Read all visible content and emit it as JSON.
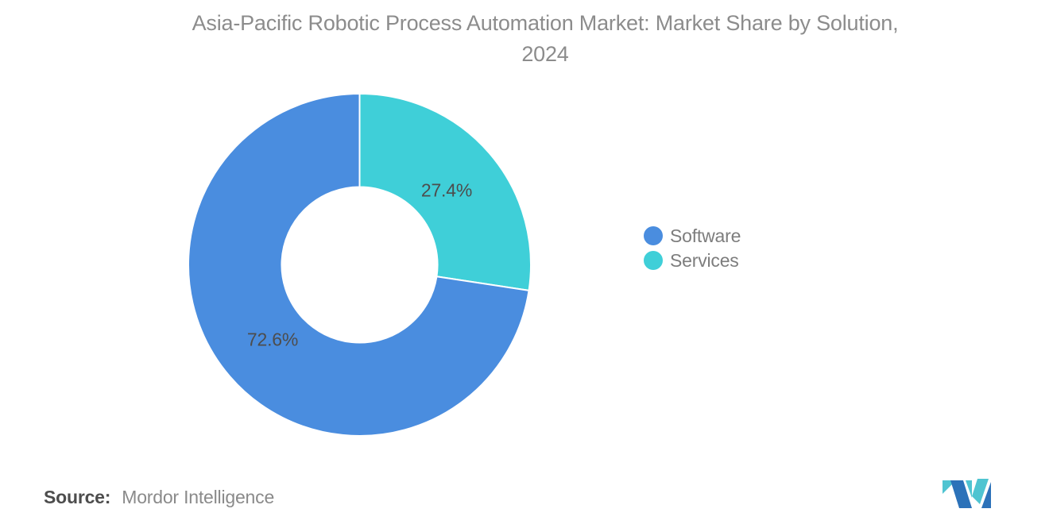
{
  "header": {
    "title_line1": "Asia-Pacific Robotic Process Automation Market: Market Share by Solution,",
    "title_line2": "2024"
  },
  "chart_data": {
    "type": "pie",
    "subtype": "donut",
    "title": "Asia-Pacific Robotic Process Automation Market: Market Share by Solution, 2024",
    "categories": [
      "Software",
      "Services"
    ],
    "values": [
      72.6,
      27.4
    ],
    "units": "%",
    "inner_radius_ratio": 0.455,
    "start_angle_deg": 0,
    "direction": "clockwise",
    "slices": [
      {
        "label": "Services",
        "value": 27.4,
        "display": "27.4%",
        "color": "#3FCFD8"
      },
      {
        "label": "Software",
        "value": 72.6,
        "display": "72.6%",
        "color": "#4A8DDF"
      }
    ],
    "data_label_color": "#4D4D4D",
    "legend": {
      "position": "right",
      "items": [
        {
          "label": "Software",
          "color": "#4A8DDF"
        },
        {
          "label": "Services",
          "color": "#3FCFD8"
        }
      ]
    }
  },
  "footer": {
    "source_label": "Source:",
    "source_value": "Mordor Intelligence"
  },
  "logo": {
    "name": "mordor-intelligence-logo",
    "teal": "#4FC4D1",
    "blue": "#2C72B9"
  },
  "colors": {
    "background": "#FFFFFF",
    "title_text": "#8C8C8C",
    "legend_text": "#7D7D7D",
    "source_label_text": "#4D4D4D",
    "source_value_text": "#8A8A8A"
  }
}
